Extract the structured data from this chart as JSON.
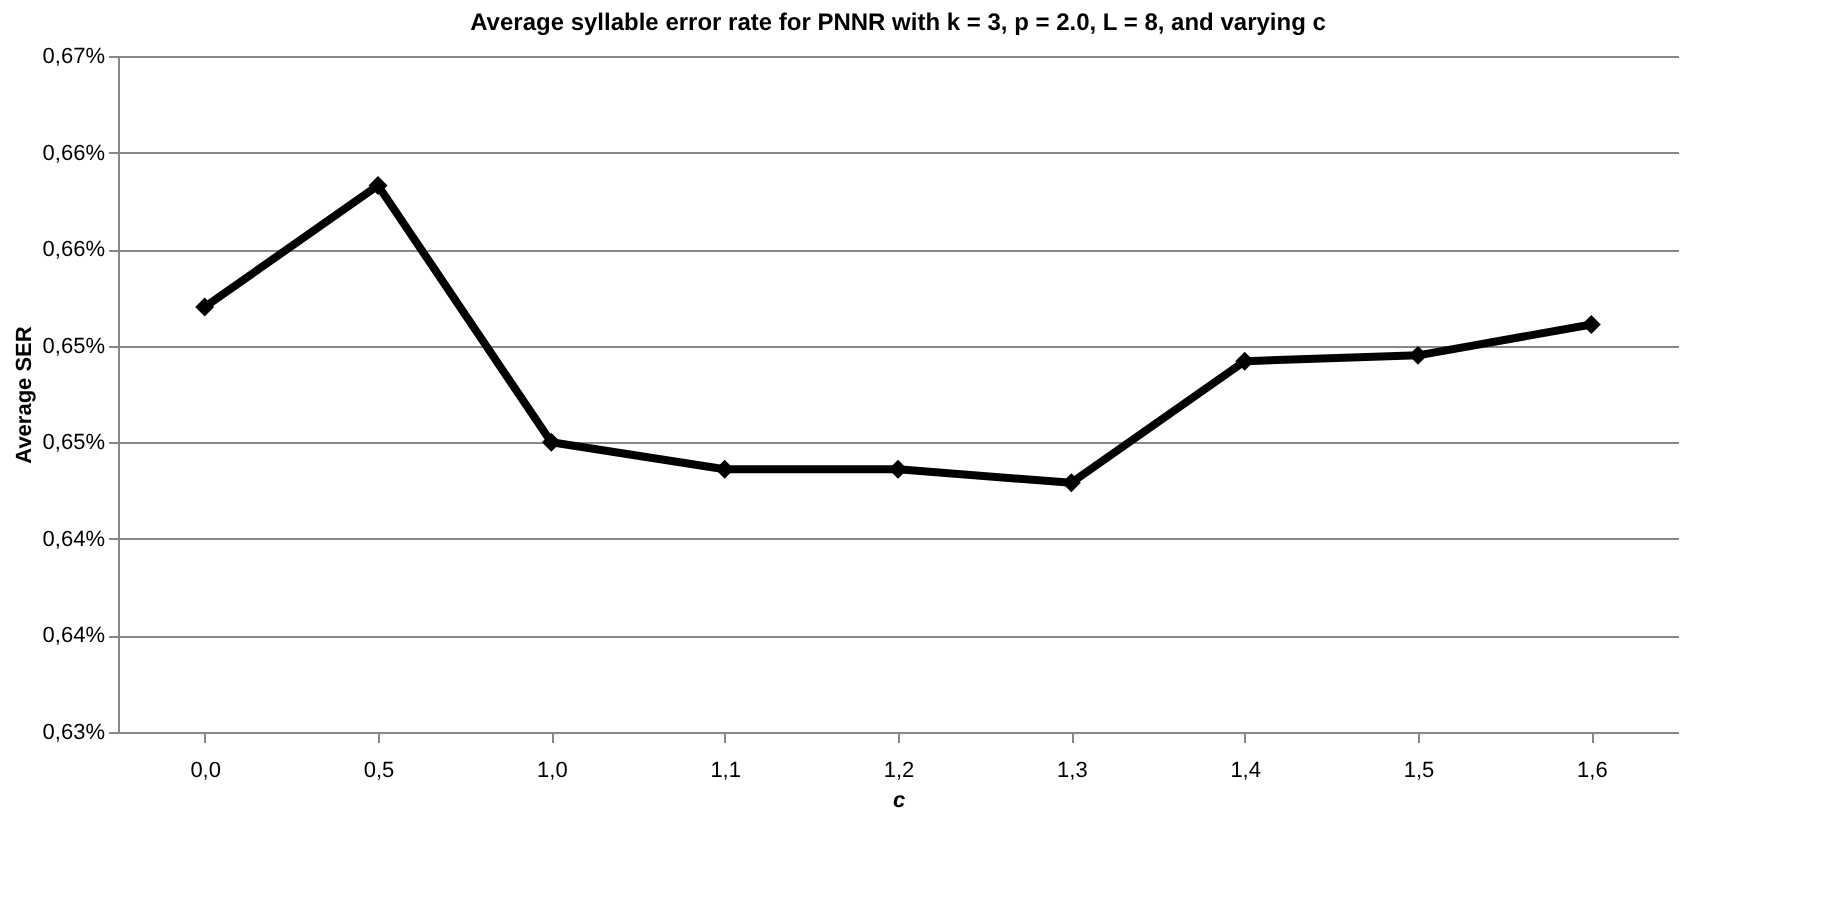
{
  "chart_data": {
    "type": "line",
    "title": "Average syllable error rate for PNNR with k = 3, p = 2.0, L = 8, and varying c",
    "xlabel": "c",
    "ylabel": "Average SER",
    "categories": [
      "0,0",
      "0,5",
      "1,0",
      "1,1",
      "1,2",
      "1,3",
      "1,4",
      "1,5",
      "1,6"
    ],
    "series": [
      {
        "color": "#000000",
        "values": [
          0.652,
          0.6583,
          0.645,
          0.6436,
          0.6436,
          0.6429,
          0.6492,
          0.6495,
          0.6511
        ]
      }
    ],
    "ylim": [
      0.63,
      0.665
    ],
    "yticks": [
      {
        "value": 0.63,
        "label": "0,63%"
      },
      {
        "value": 0.635,
        "label": "0,64%"
      },
      {
        "value": 0.64,
        "label": "0,64%"
      },
      {
        "value": 0.645,
        "label": "0,65%"
      },
      {
        "value": 0.65,
        "label": "0,65%"
      },
      {
        "value": 0.655,
        "label": "0,66%"
      },
      {
        "value": 0.66,
        "label": "0,66%"
      },
      {
        "value": 0.665,
        "label": "0,67%"
      }
    ],
    "grid": "y",
    "marker": "diamond",
    "line_style": "solid",
    "legend": false
  }
}
